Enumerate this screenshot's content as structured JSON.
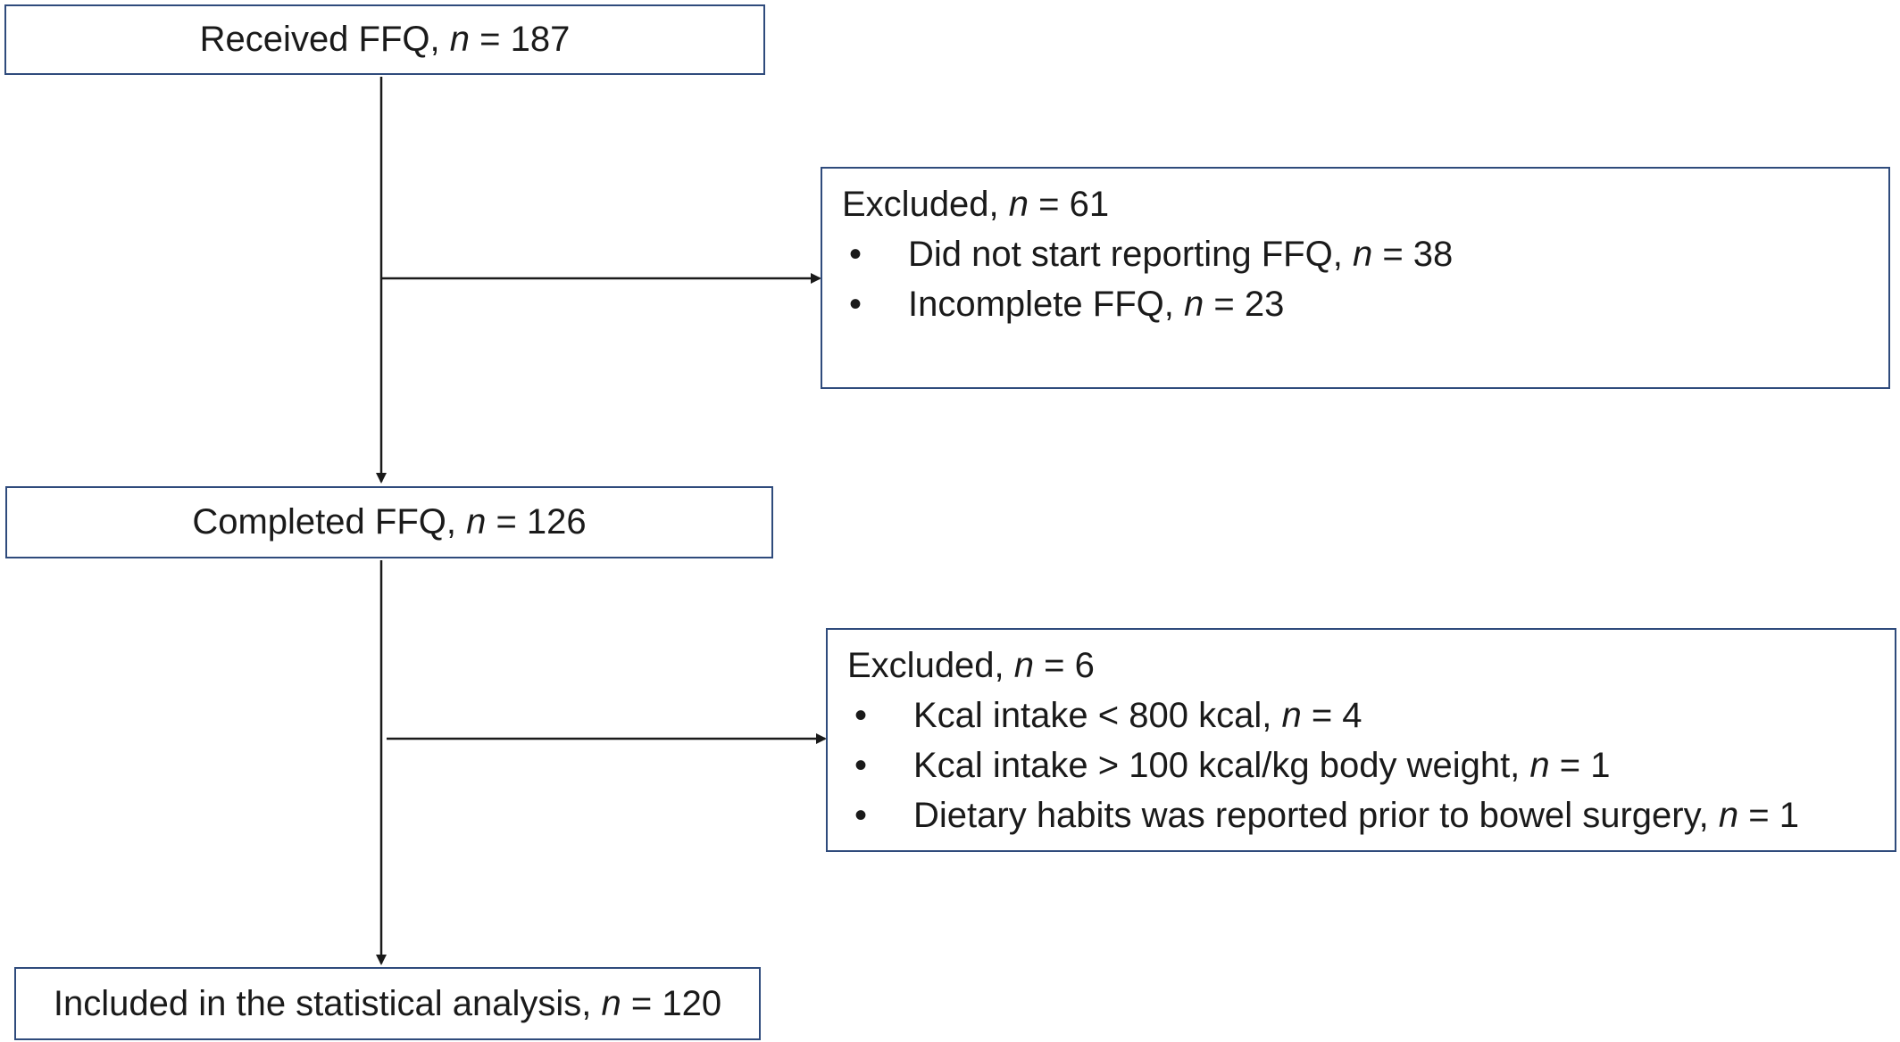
{
  "flowchart": {
    "received": {
      "text": "Received FFQ, ",
      "n_label": "n",
      "value": " = 187"
    },
    "excluded_1": {
      "head": {
        "text": "Excluded, ",
        "n_label": "n",
        "value": " = 61"
      },
      "items": [
        {
          "text": "Did not start reporting FFQ, ",
          "n_label": "n",
          "value": " = 38"
        },
        {
          "text": "Incomplete FFQ, ",
          "n_label": "n",
          "value": " = 23"
        }
      ]
    },
    "completed": {
      "text": "Completed FFQ, ",
      "n_label": "n",
      "value": " = 126"
    },
    "excluded_2": {
      "head": {
        "text": "Excluded, ",
        "n_label": "n",
        "value": " = 6"
      },
      "items": [
        {
          "text": "Kcal intake < 800 kcal, ",
          "n_label": "n",
          "value": " = 4"
        },
        {
          "text": "Kcal intake > 100 kcal/kg body weight, ",
          "n_label": "n",
          "value": " = 1"
        },
        {
          "text": "Dietary habits was reported prior to bowel surgery, ",
          "n_label": "n",
          "value": " = 1"
        }
      ]
    },
    "included": {
      "text": "Included in the statistical analysis, ",
      "n_label": "n",
      "value": " = 120"
    },
    "bullet": "•"
  }
}
